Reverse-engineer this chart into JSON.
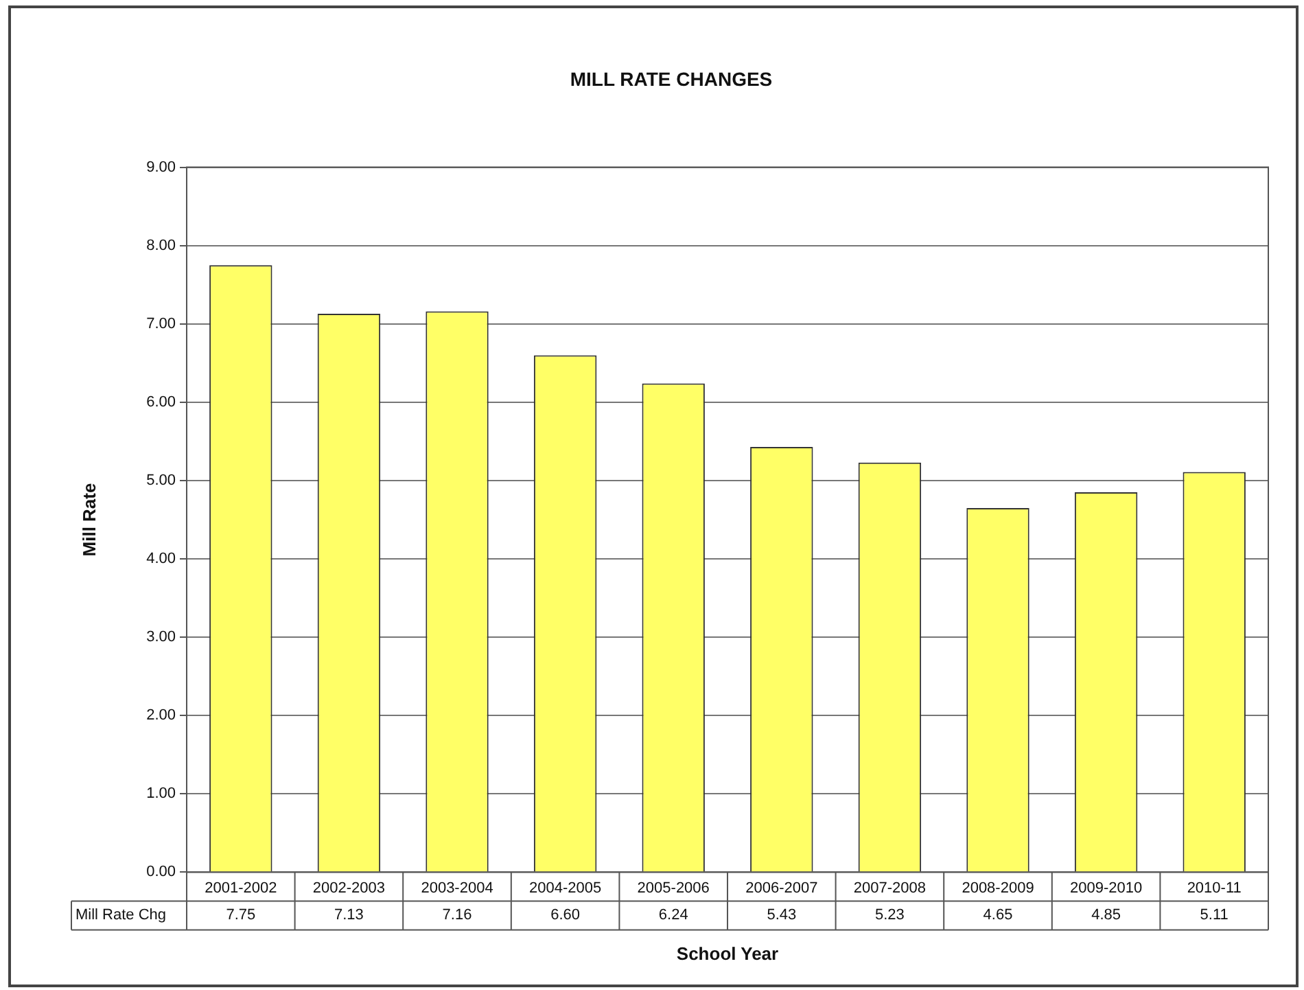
{
  "chart_data": {
    "type": "bar",
    "title": "MILL RATE CHANGES",
    "xlabel": "School Year",
    "ylabel": "Mill Rate",
    "categories": [
      "2001-2002",
      "2002-2003",
      "2003-2004",
      "2004-2005",
      "2005-2006",
      "2006-2007",
      "2007-2008",
      "2008-2009",
      "2009-2010",
      "2010-11"
    ],
    "series": [
      {
        "name": "Mill Rate Chg",
        "color": "#ffff66",
        "values": [
          7.75,
          7.13,
          7.16,
          6.6,
          6.24,
          5.43,
          5.23,
          4.65,
          4.85,
          5.11
        ],
        "value_labels": [
          "7.75",
          "7.13",
          "7.16",
          "6.60",
          "6.24",
          "5.43",
          "5.23",
          "4.65",
          "4.85",
          "5.11"
        ]
      }
    ],
    "ylim": [
      0,
      9
    ],
    "yticks": [
      {
        "value": 0,
        "label": "0.00"
      },
      {
        "value": 1,
        "label": "1.00"
      },
      {
        "value": 2,
        "label": "2.00"
      },
      {
        "value": 3,
        "label": "3.00"
      },
      {
        "value": 4,
        "label": "4.00"
      },
      {
        "value": 5,
        "label": "5.00"
      },
      {
        "value": 6,
        "label": "6.00"
      },
      {
        "value": 7,
        "label": "7.00"
      },
      {
        "value": 8,
        "label": "8.00"
      },
      {
        "value": 9,
        "label": "9.00"
      }
    ],
    "grid": "y",
    "legend": false
  }
}
